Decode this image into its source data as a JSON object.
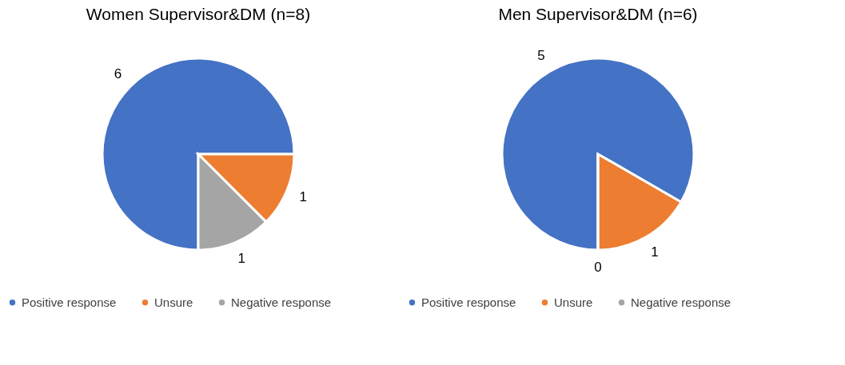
{
  "chart_data": [
    {
      "type": "pie",
      "title": "Women Supervisor&DM  (n=8)",
      "categories": [
        "Positive response",
        "Unsure",
        "Negative response"
      ],
      "values": [
        6,
        1,
        1
      ],
      "colors": [
        "#4472c4",
        "#ed7d31",
        "#a5a5a5"
      ],
      "value_labels": [
        "6",
        "1",
        "1"
      ],
      "legend": "bottom"
    },
    {
      "type": "pie",
      "title": "Men Supervisor&DM  (n=6)",
      "categories": [
        "Positive response",
        "Unsure",
        "Negative response"
      ],
      "values": [
        5,
        1,
        0
      ],
      "colors": [
        "#4472c4",
        "#ed7d31",
        "#a5a5a5"
      ],
      "value_labels": [
        "5",
        "1",
        "0"
      ],
      "legend": "bottom"
    }
  ]
}
